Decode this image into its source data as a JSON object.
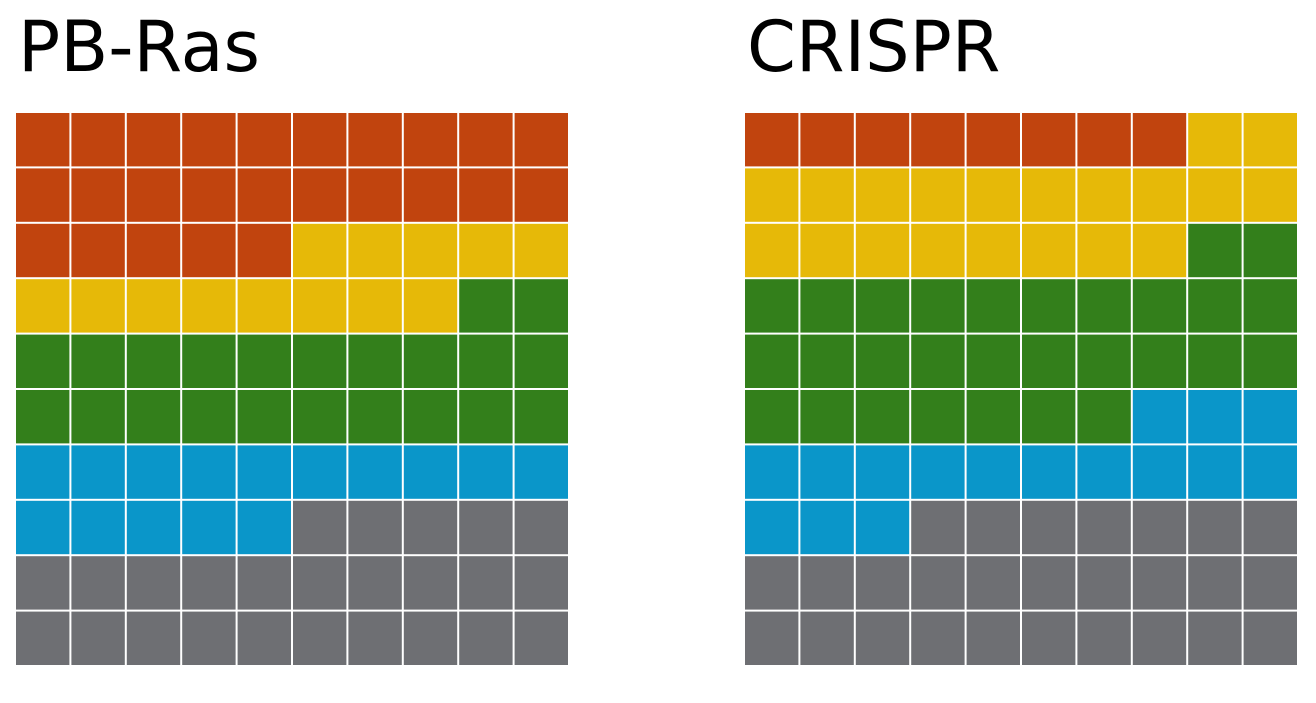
{
  "chart_data": [
    {
      "type": "waffle",
      "title": "PB-Ras",
      "rows": 10,
      "columns": 10,
      "categories": [
        {
          "color": "#c1440e",
          "count": 25
        },
        {
          "color": "#e6b908",
          "count": 13
        },
        {
          "color": "#337f1b",
          "count": 22
        },
        {
          "color": "#0a96c9",
          "count": 15
        },
        {
          "color": "#6e6f73",
          "count": 25
        }
      ]
    },
    {
      "type": "waffle",
      "title": "CRISPR",
      "rows": 10,
      "columns": 10,
      "categories": [
        {
          "color": "#c1440e",
          "count": 8
        },
        {
          "color": "#e6b908",
          "count": 20
        },
        {
          "color": "#337f1b",
          "count": 29
        },
        {
          "color": "#0a96c9",
          "count": 16
        },
        {
          "color": "#6e6f73",
          "count": 27
        }
      ]
    }
  ]
}
